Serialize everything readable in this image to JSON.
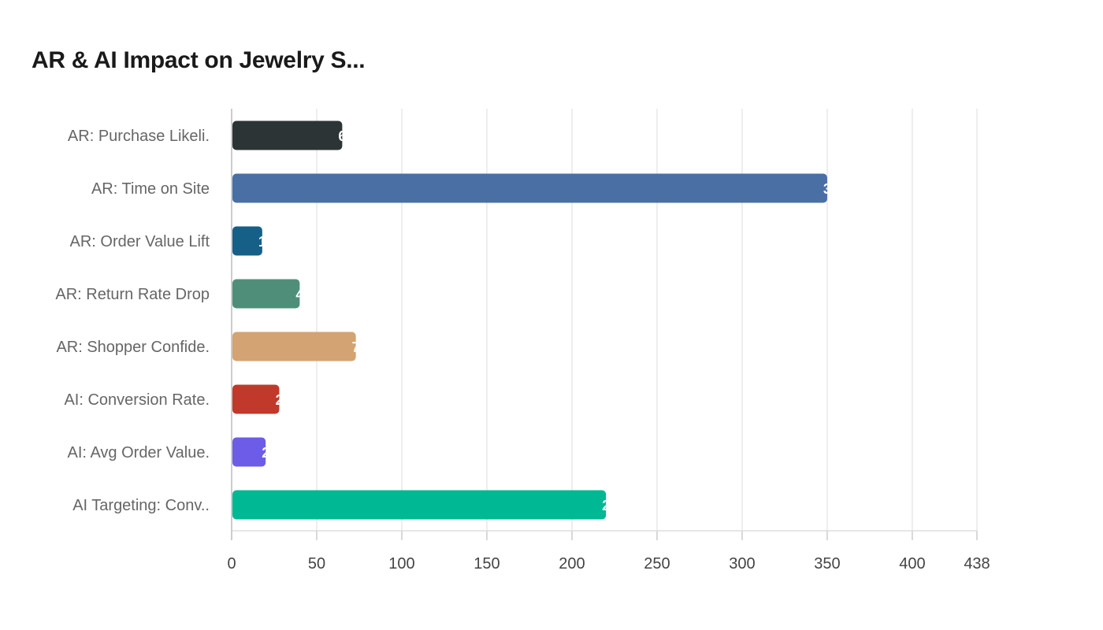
{
  "chart_data": {
    "type": "bar",
    "orientation": "horizontal",
    "title": "AR & AI Impact on Jewelry S...",
    "categories": [
      "AR: Purchase Likeli.",
      "AR: Time on Site",
      "AR: Order Value Lift",
      "AR: Return Rate Drop",
      "AR: Shopper Confide.",
      "AI: Conversion Rate.",
      "AI: Avg Order Value.",
      "AI Targeting: Conv.."
    ],
    "values": [
      65,
      350,
      18,
      40,
      73,
      28,
      20,
      220
    ],
    "colors": [
      "#2d3436",
      "#4a6fa5",
      "#166088",
      "#4f8f7a",
      "#d4a373",
      "#c0392b",
      "#6c5ce7",
      "#00b894"
    ],
    "xlim": [
      0,
      438
    ],
    "xticks": [
      0,
      50,
      100,
      150,
      200,
      250,
      300,
      350,
      400,
      438
    ],
    "xlabel": "",
    "ylabel": "",
    "grid": true,
    "data_labels": true
  }
}
